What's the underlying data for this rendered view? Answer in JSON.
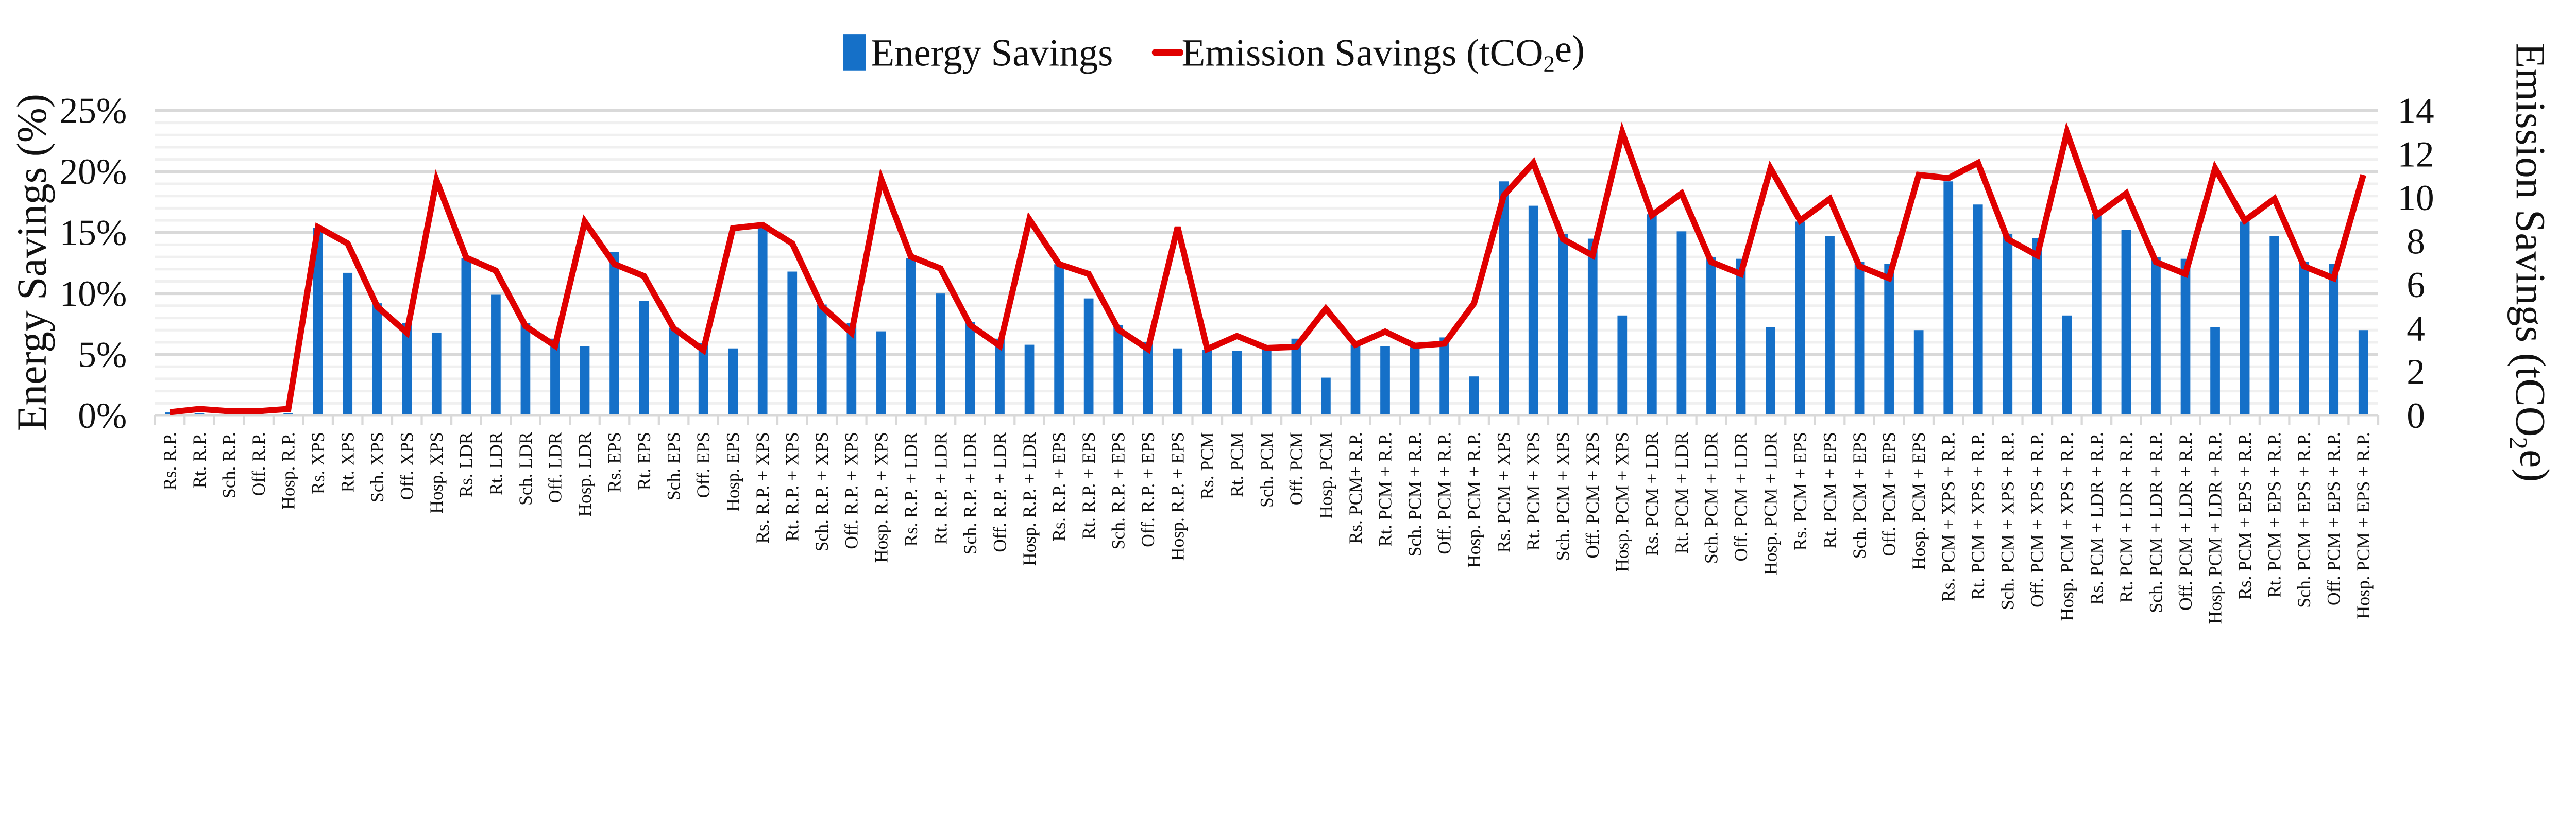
{
  "chart_data": {
    "type": "bar+line",
    "title": "",
    "legend": {
      "position": "top-center",
      "entries": [
        "Energy Savings",
        "Emission Savings (tCO2e)"
      ]
    },
    "ylabel": "Energy Savings (%)",
    "y2label": "Emission Savings (tCO2e)",
    "ylim": [
      0,
      25
    ],
    "y2lim": [
      0,
      14
    ],
    "yticks": [
      "0%",
      "5%",
      "10%",
      "15%",
      "20%",
      "25%"
    ],
    "y2ticks": [
      "0",
      "2",
      "4",
      "6",
      "8",
      "10",
      "12",
      "14"
    ],
    "grid": "horizontal major and minor",
    "colors": {
      "bar": "#1570C8",
      "line": "#E00000",
      "grid_major": "#D9D9D9",
      "grid_minor": "#F0F0F0"
    },
    "categories": [
      "Rs. R.P.",
      "Rt. R.P.",
      "Sch. R.P.",
      "Off. R.P.",
      "Hosp. R.P.",
      "Rs. XPS",
      "Rt. XPS",
      "Sch. XPS",
      "Off. XPS",
      "Hosp. XPS",
      "Rs. LDR",
      "Rt. LDR",
      "Sch. LDR",
      "Off. LDR",
      "Hosp. LDR",
      "Rs. EPS",
      "Rt. EPS",
      "Sch. EPS",
      "Off. EPS",
      "Hosp. EPS",
      "Rs. R.P. + XPS",
      "Rt. R.P. + XPS",
      "Sch. R.P. + XPS",
      "Off. R.P. + XPS",
      "Hosp. R.P. + XPS",
      "Rs. R.P. + LDR",
      "Rt. R.P. + LDR",
      "Sch. R.P. + LDR",
      "Off. R.P. + LDR",
      "Hosp. R.P. + LDR",
      "Rs. R.P. + EPS",
      "Rt. R.P. + EPS",
      "Sch. R.P. + EPS",
      "Off. R.P. + EPS",
      "Hosp. R.P. + EPS",
      "Rs. PCM",
      "Rt. PCM",
      "Sch. PCM",
      "Off. PCM",
      "Hosp. PCM",
      "Rs. PCM+ R.P.",
      "Rt. PCM + R.P.",
      "Sch. PCM + R.P.",
      "Off. PCM + R.P.",
      "Hosp. PCM + R.P.",
      "Rs. PCM + XPS",
      "Rt. PCM + XPS",
      "Sch. PCM + XPS",
      "Off. PCM + XPS",
      "Hosp. PCM + XPS",
      "Rs. PCM + LDR",
      "Rt. PCM + LDR",
      "Sch. PCM + LDR",
      "Off. PCM + LDR",
      "Hosp. PCM + LDR",
      "Rs. PCM + EPS",
      "Rt. PCM + EPS",
      "Sch. PCM + EPS",
      "Off. PCM + EPS",
      "Hosp. PCM + EPS",
      "Rs. PCM + XPS + R.P.",
      "Rt. PCM + XPS + R.P.",
      "Sch. PCM + XPS + R.P.",
      "Off. PCM + XPS + R.P.",
      "Hosp. PCM + XPS + R.P.",
      "Rs. PCM + LDR + R.P.",
      "Rt. PCM + LDR + R.P.",
      "Sch. PCM + LDR + R.P.",
      "Off. PCM + LDR + R.P.",
      "Hosp. PCM + LDR + R.P.",
      "Rs. PCM + EPS + R.P.",
      "Rt. PCM + EPS + R.P.",
      "Sch. PCM + EPS + R.P.",
      "Off. PCM + EPS + R.P.",
      "Hosp. PCM + EPS + R.P."
    ],
    "series": [
      {
        "name": "Energy Savings",
        "type": "bar",
        "axis": "left",
        "unit": "%",
        "values": [
          0.25,
          0.2,
          0.15,
          0.15,
          0.2,
          15.4,
          11.7,
          9.2,
          7.6,
          6.8,
          12.9,
          9.9,
          7.6,
          6.3,
          5.7,
          13.4,
          9.4,
          7.2,
          5.95,
          5.5,
          15.4,
          11.8,
          9.1,
          7.6,
          6.9,
          12.9,
          10.0,
          7.65,
          6.3,
          5.8,
          12.4,
          9.6,
          7.4,
          6.0,
          5.5,
          5.4,
          5.3,
          5.4,
          6.3,
          3.1,
          5.8,
          5.7,
          5.6,
          6.4,
          3.2,
          19.2,
          17.2,
          14.9,
          14.5,
          8.2,
          16.5,
          15.1,
          13.0,
          12.85,
          7.25,
          15.9,
          14.7,
          12.6,
          12.45,
          7.0,
          19.2,
          17.3,
          14.9,
          14.55,
          8.2,
          16.5,
          15.2,
          13.0,
          12.85,
          7.25,
          15.9,
          14.7,
          12.6,
          12.45,
          7.0
        ]
      },
      {
        "name": "Emission Savings (tCO2e)",
        "type": "line",
        "axis": "right",
        "unit": "tCO2e",
        "values": [
          0.15,
          0.3,
          0.2,
          0.2,
          0.3,
          8.65,
          7.9,
          5.0,
          3.8,
          10.8,
          7.25,
          6.65,
          4.1,
          3.2,
          8.9,
          6.95,
          6.4,
          4.0,
          3.0,
          8.6,
          8.75,
          7.9,
          5.0,
          3.8,
          10.85,
          7.3,
          6.75,
          4.15,
          3.2,
          9.0,
          6.95,
          6.5,
          3.95,
          3.05,
          8.65,
          3.05,
          3.65,
          3.1,
          3.15,
          4.9,
          3.25,
          3.85,
          3.2,
          3.3,
          5.15,
          10.1,
          11.6,
          8.1,
          7.35,
          13.0,
          9.2,
          10.2,
          7.05,
          6.5,
          11.35,
          8.95,
          9.95,
          6.85,
          6.3,
          11.05,
          10.9,
          11.6,
          8.1,
          7.35,
          13.0,
          9.2,
          10.2,
          7.05,
          6.5,
          11.35,
          8.95,
          9.95,
          6.85,
          6.3,
          11.05
        ]
      }
    ]
  }
}
